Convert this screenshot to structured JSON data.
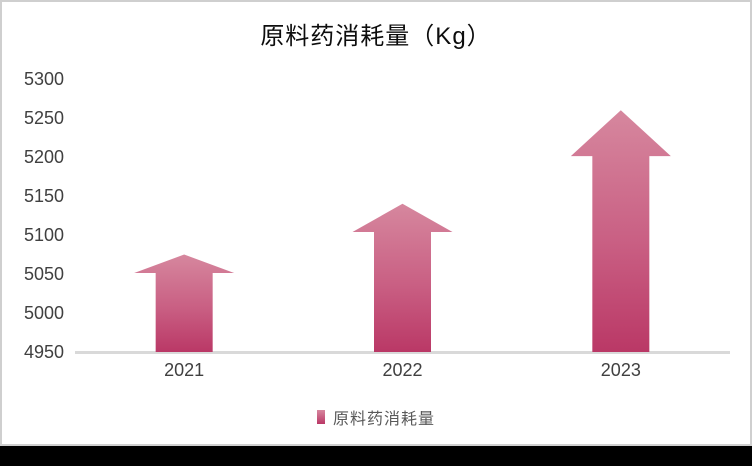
{
  "chart": {
    "colors": {
      "arrow_gradient_top": "#d6879e",
      "arrow_gradient_mid": "#c95f83",
      "arrow_gradient_bottom": "#ba3866",
      "axis_line": "#d9d9d9",
      "tick_label": "#404040",
      "legend_text": "#595959",
      "title": "#0d0d0d",
      "card_border": "#cfcfcf",
      "card_background": "#ffffff",
      "bottom_bar": "#000000"
    }
  },
  "chart_data": {
    "type": "bar",
    "bar_shape": "up-arrow",
    "title": "原料药消耗量（Kg）",
    "categories": [
      "2021",
      "2022",
      "2023"
    ],
    "series": [
      {
        "name": "原料药消耗量",
        "values": [
          5075,
          5140,
          5260
        ]
      }
    ],
    "xlabel": "",
    "ylabel": "",
    "ylim": [
      4950,
      5300
    ],
    "ytick_step": 50,
    "yticks": [
      "5300",
      "5250",
      "5200",
      "5150",
      "5100",
      "5050",
      "5000",
      "4950"
    ],
    "grid": false,
    "legend_position": "bottom"
  }
}
